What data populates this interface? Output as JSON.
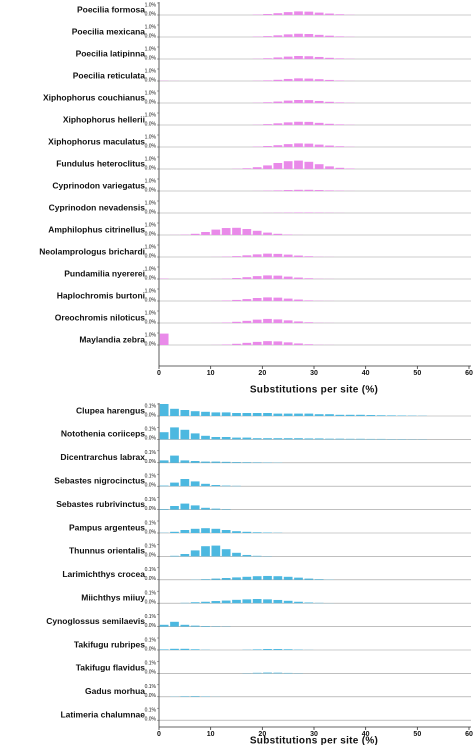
{
  "chart_data": [
    {
      "type": "histogram",
      "color": "#e98ae9",
      "xlabel": "Substitutions per site (%)",
      "xlim": [
        0,
        60
      ],
      "xticks": [
        0,
        10,
        20,
        30,
        40,
        50,
        60
      ],
      "ylim": [
        0,
        1
      ],
      "yticks": [
        {
          "value": 0,
          "label": "0.0%"
        },
        {
          "value": 1,
          "label": "1.0%"
        }
      ],
      "bins": [
        0,
        2,
        4,
        6,
        8,
        10,
        12,
        14,
        16,
        18,
        20,
        22,
        24,
        26,
        28,
        30,
        32,
        34,
        36,
        38,
        40,
        42,
        44,
        46,
        48,
        50,
        52,
        54,
        56,
        58,
        60
      ],
      "series": [
        {
          "name": "Poecilia formosa",
          "values": [
            0,
            0,
            0,
            0,
            0,
            0,
            0,
            0,
            0,
            0.03,
            0.08,
            0.15,
            0.24,
            0.3,
            0.28,
            0.2,
            0.12,
            0.06,
            0.02,
            0,
            0,
            0,
            0,
            0,
            0,
            0,
            0,
            0,
            0,
            0
          ]
        },
        {
          "name": "Poecilia mexicana",
          "values": [
            0,
            0,
            0,
            0,
            0,
            0,
            0,
            0,
            0,
            0.03,
            0.07,
            0.14,
            0.22,
            0.27,
            0.25,
            0.18,
            0.11,
            0.05,
            0.02,
            0,
            0,
            0,
            0,
            0,
            0,
            0,
            0,
            0,
            0,
            0
          ]
        },
        {
          "name": "Poecilia latipinna",
          "values": [
            0,
            0,
            0,
            0,
            0,
            0,
            0,
            0,
            0,
            0.02,
            0.06,
            0.13,
            0.2,
            0.25,
            0.23,
            0.17,
            0.1,
            0.05,
            0.02,
            0,
            0,
            0,
            0,
            0,
            0,
            0,
            0,
            0,
            0,
            0
          ]
        },
        {
          "name": "Poecilia reticulata",
          "values": [
            0.02,
            0.01,
            0,
            0,
            0,
            0,
            0,
            0,
            0,
            0.02,
            0.05,
            0.1,
            0.17,
            0.22,
            0.2,
            0.15,
            0.09,
            0.04,
            0.01,
            0,
            0,
            0,
            0,
            0,
            0,
            0,
            0,
            0,
            0,
            0
          ]
        },
        {
          "name": "Xiphophorus couchianus",
          "values": [
            0,
            0,
            0,
            0,
            0,
            0,
            0,
            0,
            0,
            0.02,
            0.06,
            0.12,
            0.2,
            0.25,
            0.24,
            0.17,
            0.1,
            0.05,
            0.02,
            0,
            0,
            0,
            0,
            0,
            0,
            0,
            0,
            0,
            0,
            0
          ]
        },
        {
          "name": "Xiphophorus hellerii",
          "values": [
            0,
            0,
            0,
            0,
            0,
            0,
            0,
            0,
            0,
            0.02,
            0.07,
            0.14,
            0.22,
            0.27,
            0.26,
            0.18,
            0.1,
            0.05,
            0.02,
            0,
            0,
            0,
            0,
            0,
            0,
            0,
            0,
            0,
            0,
            0
          ]
        },
        {
          "name": "Xiphophorus maculatus",
          "values": [
            0,
            0,
            0,
            0,
            0,
            0,
            0,
            0,
            0,
            0.03,
            0.08,
            0.15,
            0.24,
            0.3,
            0.28,
            0.2,
            0.12,
            0.06,
            0.02,
            0,
            0,
            0,
            0,
            0,
            0,
            0,
            0,
            0,
            0,
            0
          ]
        },
        {
          "name": "Fundulus heteroclitus",
          "values": [
            0,
            0,
            0,
            0,
            0,
            0,
            0,
            0.02,
            0.06,
            0.15,
            0.3,
            0.5,
            0.65,
            0.7,
            0.6,
            0.4,
            0.22,
            0.1,
            0.04,
            0,
            0,
            0,
            0,
            0,
            0,
            0,
            0,
            0,
            0,
            0
          ]
        },
        {
          "name": "Cyprinodon variegatus",
          "values": [
            0,
            0,
            0,
            0,
            0,
            0,
            0,
            0,
            0,
            0.01,
            0.03,
            0.05,
            0.08,
            0.1,
            0.1,
            0.08,
            0.05,
            0.03,
            0.01,
            0,
            0,
            0,
            0,
            0,
            0,
            0,
            0,
            0,
            0,
            0
          ]
        },
        {
          "name": "Cyprinodon nevadensis",
          "values": [
            0,
            0,
            0,
            0,
            0,
            0,
            0,
            0,
            0,
            0,
            0.01,
            0.02,
            0.03,
            0.04,
            0.04,
            0.03,
            0.02,
            0.01,
            0,
            0,
            0,
            0,
            0,
            0,
            0,
            0,
            0,
            0,
            0,
            0
          ]
        },
        {
          "name": "Amphilophus citrinellus",
          "values": [
            0,
            0.01,
            0.03,
            0.1,
            0.25,
            0.45,
            0.58,
            0.6,
            0.5,
            0.35,
            0.2,
            0.1,
            0.04,
            0.01,
            0,
            0,
            0,
            0,
            0,
            0,
            0,
            0,
            0,
            0,
            0,
            0,
            0,
            0,
            0,
            0
          ]
        },
        {
          "name": "Neolamprologus brichardi",
          "values": [
            0,
            0,
            0,
            0,
            0,
            0.01,
            0.03,
            0.07,
            0.14,
            0.22,
            0.28,
            0.26,
            0.2,
            0.12,
            0.06,
            0.02,
            0.01,
            0,
            0,
            0,
            0,
            0,
            0,
            0,
            0,
            0,
            0,
            0,
            0,
            0
          ]
        },
        {
          "name": "Pundamilia nyererei",
          "values": [
            0.03,
            0,
            0,
            0,
            0,
            0.01,
            0.03,
            0.08,
            0.15,
            0.24,
            0.3,
            0.28,
            0.2,
            0.12,
            0.06,
            0.02,
            0.01,
            0,
            0,
            0,
            0,
            0,
            0,
            0,
            0,
            0,
            0,
            0,
            0,
            0
          ]
        },
        {
          "name": "Haplochromis burtoni",
          "values": [
            0,
            0,
            0,
            0,
            0,
            0.01,
            0.04,
            0.09,
            0.16,
            0.25,
            0.3,
            0.28,
            0.2,
            0.12,
            0.05,
            0.02,
            0.01,
            0,
            0,
            0,
            0,
            0,
            0,
            0,
            0,
            0,
            0,
            0,
            0,
            0
          ]
        },
        {
          "name": "Oreochromis niloticus",
          "values": [
            0,
            0,
            0,
            0,
            0,
            0.01,
            0.04,
            0.1,
            0.18,
            0.28,
            0.34,
            0.3,
            0.22,
            0.13,
            0.06,
            0.02,
            0.01,
            0,
            0,
            0,
            0,
            0,
            0,
            0,
            0,
            0,
            0,
            0,
            0,
            0
          ]
        },
        {
          "name": "Maylandia zebra",
          "values": [
            0.95,
            0,
            0,
            0,
            0,
            0.01,
            0.04,
            0.1,
            0.18,
            0.26,
            0.32,
            0.3,
            0.22,
            0.13,
            0.06,
            0.02,
            0.01,
            0,
            0,
            0,
            0,
            0,
            0,
            0,
            0,
            0,
            0,
            0,
            0,
            0
          ]
        }
      ]
    },
    {
      "type": "histogram",
      "color": "#4cb8e0",
      "xlabel": "Substitutions per site (%)",
      "xlim": [
        0,
        60
      ],
      "xticks": [
        0,
        10,
        20,
        30,
        40,
        50,
        60
      ],
      "ylim": [
        0,
        0.1
      ],
      "yticks": [
        {
          "value": 0,
          "label": "0.0%"
        },
        {
          "value": 0.1,
          "label": "0.1%"
        }
      ],
      "bins": [
        0,
        2,
        4,
        6,
        8,
        10,
        12,
        14,
        16,
        18,
        20,
        22,
        24,
        26,
        28,
        30,
        32,
        34,
        36,
        38,
        40,
        42,
        44,
        46,
        48,
        50,
        52,
        54,
        56,
        58,
        60
      ],
      "series": [
        {
          "name": "Clupea harengus",
          "values": [
            0.1,
            0.06,
            0.05,
            0.04,
            0.035,
            0.03,
            0.03,
            0.025,
            0.025,
            0.025,
            0.025,
            0.02,
            0.02,
            0.02,
            0.02,
            0.015,
            0.015,
            0.01,
            0.01,
            0.01,
            0.008,
            0.006,
            0.005,
            0.004,
            0.003,
            0.002,
            0,
            0,
            0,
            0
          ]
        },
        {
          "name": "Notothenia coriiceps",
          "values": [
            0.06,
            0.1,
            0.08,
            0.05,
            0.03,
            0.02,
            0.02,
            0.015,
            0.015,
            0.01,
            0.01,
            0.01,
            0.01,
            0.01,
            0.008,
            0.008,
            0.006,
            0.006,
            0.005,
            0.005,
            0.004,
            0.004,
            0.003,
            0.003,
            0.002,
            0.002,
            0,
            0,
            0,
            0
          ]
        },
        {
          "name": "Dicentrarchus labrax",
          "values": [
            0.02,
            0.06,
            0.02,
            0.015,
            0.01,
            0.01,
            0.008,
            0.006,
            0.005,
            0.004,
            0.003,
            0.002,
            0,
            0,
            0,
            0,
            0,
            0,
            0,
            0,
            0,
            0,
            0,
            0,
            0,
            0,
            0,
            0,
            0,
            0
          ]
        },
        {
          "name": "Sebastes nigrocinctus",
          "values": [
            0.005,
            0.03,
            0.06,
            0.04,
            0.02,
            0.01,
            0.005,
            0.003,
            0,
            0,
            0,
            0,
            0,
            0,
            0,
            0,
            0,
            0,
            0,
            0,
            0,
            0,
            0,
            0,
            0,
            0,
            0,
            0,
            0,
            0
          ]
        },
        {
          "name": "Sebastes rubrivinctus",
          "values": [
            0.005,
            0.03,
            0.05,
            0.035,
            0.015,
            0.008,
            0.004,
            0,
            0,
            0,
            0,
            0,
            0,
            0,
            0,
            0,
            0,
            0,
            0,
            0,
            0,
            0,
            0,
            0,
            0,
            0,
            0,
            0,
            0,
            0
          ]
        },
        {
          "name": "Pampus argenteus",
          "values": [
            0.002,
            0.01,
            0.025,
            0.035,
            0.04,
            0.035,
            0.025,
            0.015,
            0.01,
            0.006,
            0.004,
            0.002,
            0,
            0,
            0,
            0,
            0,
            0,
            0,
            0,
            0,
            0,
            0,
            0,
            0,
            0,
            0,
            0,
            0,
            0
          ]
        },
        {
          "name": "Thunnus orientalis",
          "values": [
            0,
            0.005,
            0.02,
            0.05,
            0.085,
            0.09,
            0.06,
            0.03,
            0.012,
            0.005,
            0.002,
            0,
            0,
            0,
            0,
            0,
            0,
            0,
            0,
            0,
            0,
            0,
            0,
            0,
            0,
            0,
            0,
            0,
            0,
            0
          ]
        },
        {
          "name": "Larimichthys crocea",
          "values": [
            0,
            0,
            0,
            0.002,
            0.005,
            0.01,
            0.015,
            0.02,
            0.025,
            0.03,
            0.032,
            0.03,
            0.025,
            0.018,
            0.01,
            0.005,
            0.002,
            0,
            0,
            0,
            0,
            0,
            0,
            0,
            0,
            0,
            0,
            0,
            0,
            0
          ]
        },
        {
          "name": "Miichthys miiuy",
          "values": [
            0,
            0,
            0.003,
            0.008,
            0.012,
            0.018,
            0.022,
            0.028,
            0.032,
            0.035,
            0.032,
            0.027,
            0.02,
            0.012,
            0.006,
            0.003,
            0.001,
            0,
            0,
            0,
            0,
            0,
            0,
            0,
            0,
            0,
            0,
            0,
            0,
            0
          ]
        },
        {
          "name": "Cynoglossus semilaevis",
          "values": [
            0.015,
            0.04,
            0.015,
            0.008,
            0.005,
            0.003,
            0.002,
            0,
            0,
            0,
            0,
            0,
            0,
            0,
            0,
            0,
            0,
            0,
            0,
            0,
            0,
            0,
            0,
            0,
            0,
            0,
            0,
            0,
            0,
            0
          ]
        },
        {
          "name": "Takifugu rubripes",
          "values": [
            0.005,
            0.01,
            0.01,
            0.006,
            0.002,
            0,
            0,
            0,
            0.002,
            0.005,
            0.008,
            0.008,
            0.006,
            0.003,
            0.001,
            0,
            0,
            0,
            0,
            0,
            0,
            0,
            0,
            0,
            0,
            0,
            0,
            0,
            0,
            0
          ]
        },
        {
          "name": "Takifugu flavidus",
          "values": [
            0,
            0,
            0,
            0,
            0,
            0,
            0,
            0,
            0.002,
            0.005,
            0.007,
            0.006,
            0.004,
            0.002,
            0,
            0,
            0,
            0,
            0,
            0,
            0,
            0,
            0,
            0,
            0,
            0,
            0,
            0,
            0,
            0
          ]
        },
        {
          "name": "Gadus morhua",
          "values": [
            0,
            0.002,
            0.004,
            0.005,
            0.003,
            0.001,
            0,
            0,
            0,
            0,
            0,
            0,
            0,
            0,
            0,
            0,
            0,
            0,
            0,
            0,
            0,
            0,
            0,
            0,
            0,
            0,
            0,
            0,
            0,
            0
          ]
        },
        {
          "name": "Latimeria chalumnae",
          "values": [
            0,
            0,
            0,
            0,
            0,
            0,
            0,
            0,
            0,
            0,
            0,
            0,
            0,
            0,
            0,
            0,
            0,
            0,
            0,
            0,
            0,
            0,
            0,
            0,
            0,
            0,
            0,
            0,
            0,
            0
          ]
        }
      ]
    }
  ]
}
